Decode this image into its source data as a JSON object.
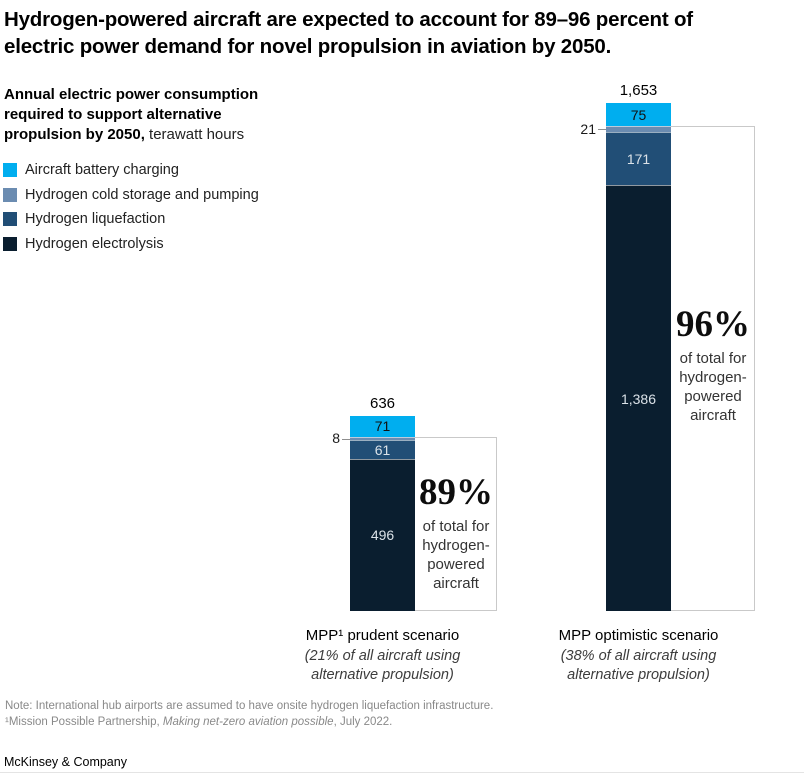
{
  "header": {
    "title_lines": [
      "Hydrogen-powered aircraft are expected to account for 89–96 percent of",
      "electric power demand for novel propulsion in aviation by 2050."
    ]
  },
  "subtitle": {
    "bold_lines": [
      "Annual electric power consumption",
      "required to support alternative",
      "propulsion by 2050,"
    ],
    "unit": " terawatt hours"
  },
  "chart_data": {
    "type": "bar",
    "stacked": true,
    "value_unit": "terawatt hours",
    "grid": false,
    "axes_shown": false,
    "categories": [
      "MPP¹ prudent scenario",
      "MPP optimistic scenario"
    ],
    "category_notes": [
      "(21% of all aircraft using alternative propulsion)",
      "(38% of all aircraft using alternative propulsion)"
    ],
    "series": [
      {
        "name": "Aircraft battery charging",
        "color": "#00AEEF",
        "values": [
          71,
          75
        ]
      },
      {
        "name": "Hydrogen cold storage and pumping",
        "color": "#6B8CB1",
        "values": [
          8,
          21
        ]
      },
      {
        "name": "Hydrogen liquefaction",
        "color": "#214E76",
        "values": [
          61,
          171
        ]
      },
      {
        "name": "Hydrogen electrolysis",
        "color": "#0A1E2F",
        "values": [
          496,
          1386
        ]
      }
    ],
    "totals": [
      636,
      1653
    ],
    "totals_display": [
      "636",
      "1,653"
    ],
    "value_labels": [
      [
        "71",
        "8",
        "61",
        "496"
      ],
      [
        "75",
        "21",
        "171",
        "1,386"
      ]
    ],
    "annotations": [
      {
        "percent": "89%",
        "caption": "of total for hydrogen-powered aircraft"
      },
      {
        "percent": "96%",
        "caption": "of total for hydrogen-powered aircraft"
      }
    ]
  },
  "footnotes": {
    "note": "Note: International hub airports are assumed to have onsite hydrogen liquefaction infrastructure.",
    "source_prefix": "¹Mission Possible Partnership, ",
    "source_italic": "Making net-zero aviation possible",
    "source_suffix": ", July 2022."
  },
  "footer": {
    "brand": "McKinsey & Company"
  }
}
